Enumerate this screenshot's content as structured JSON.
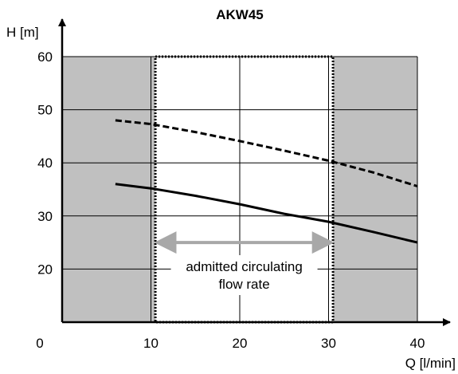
{
  "chart_data": {
    "type": "line",
    "title": "AKW45",
    "xlabel": "Q [l/min]",
    "ylabel": "H [m]",
    "xlim": [
      0,
      40
    ],
    "ylim": [
      10,
      60
    ],
    "x_ticks": [
      0,
      10,
      20,
      30,
      40
    ],
    "y_ticks": [
      20,
      30,
      40,
      50,
      60
    ],
    "x_tick_labels": [
      "0",
      "10",
      "20",
      "30",
      "40"
    ],
    "y_tick_labels": [
      "20",
      "30",
      "40",
      "50",
      "60"
    ],
    "grid": true,
    "series": [
      {
        "style": "solid",
        "x": [
          6,
          10,
          15,
          20,
          25,
          30,
          35,
          40
        ],
        "y": [
          36,
          35.2,
          33.8,
          32.2,
          30.4,
          28.9,
          27,
          25
        ]
      },
      {
        "style": "dashed",
        "x": [
          6,
          10,
          15,
          20,
          25,
          30,
          35,
          40
        ],
        "y": [
          48,
          47.3,
          45.8,
          44.1,
          42.3,
          40.4,
          38.2,
          35.6
        ]
      }
    ],
    "shaded_ranges": [
      {
        "x": [
          0,
          10.5
        ],
        "color": "#c0c0c0"
      },
      {
        "x": [
          30.5,
          40
        ],
        "color": "#c0c0c0"
      }
    ],
    "admitted_range": {
      "x": [
        10.5,
        30.5
      ],
      "arrow_y": 25,
      "label_lines": [
        "admitted circulating",
        "flow rate"
      ]
    },
    "colors": {
      "curve": "#000000",
      "shade": "#c0c0c0",
      "arrow": "#a8a8a8",
      "grid": "#000000"
    }
  }
}
